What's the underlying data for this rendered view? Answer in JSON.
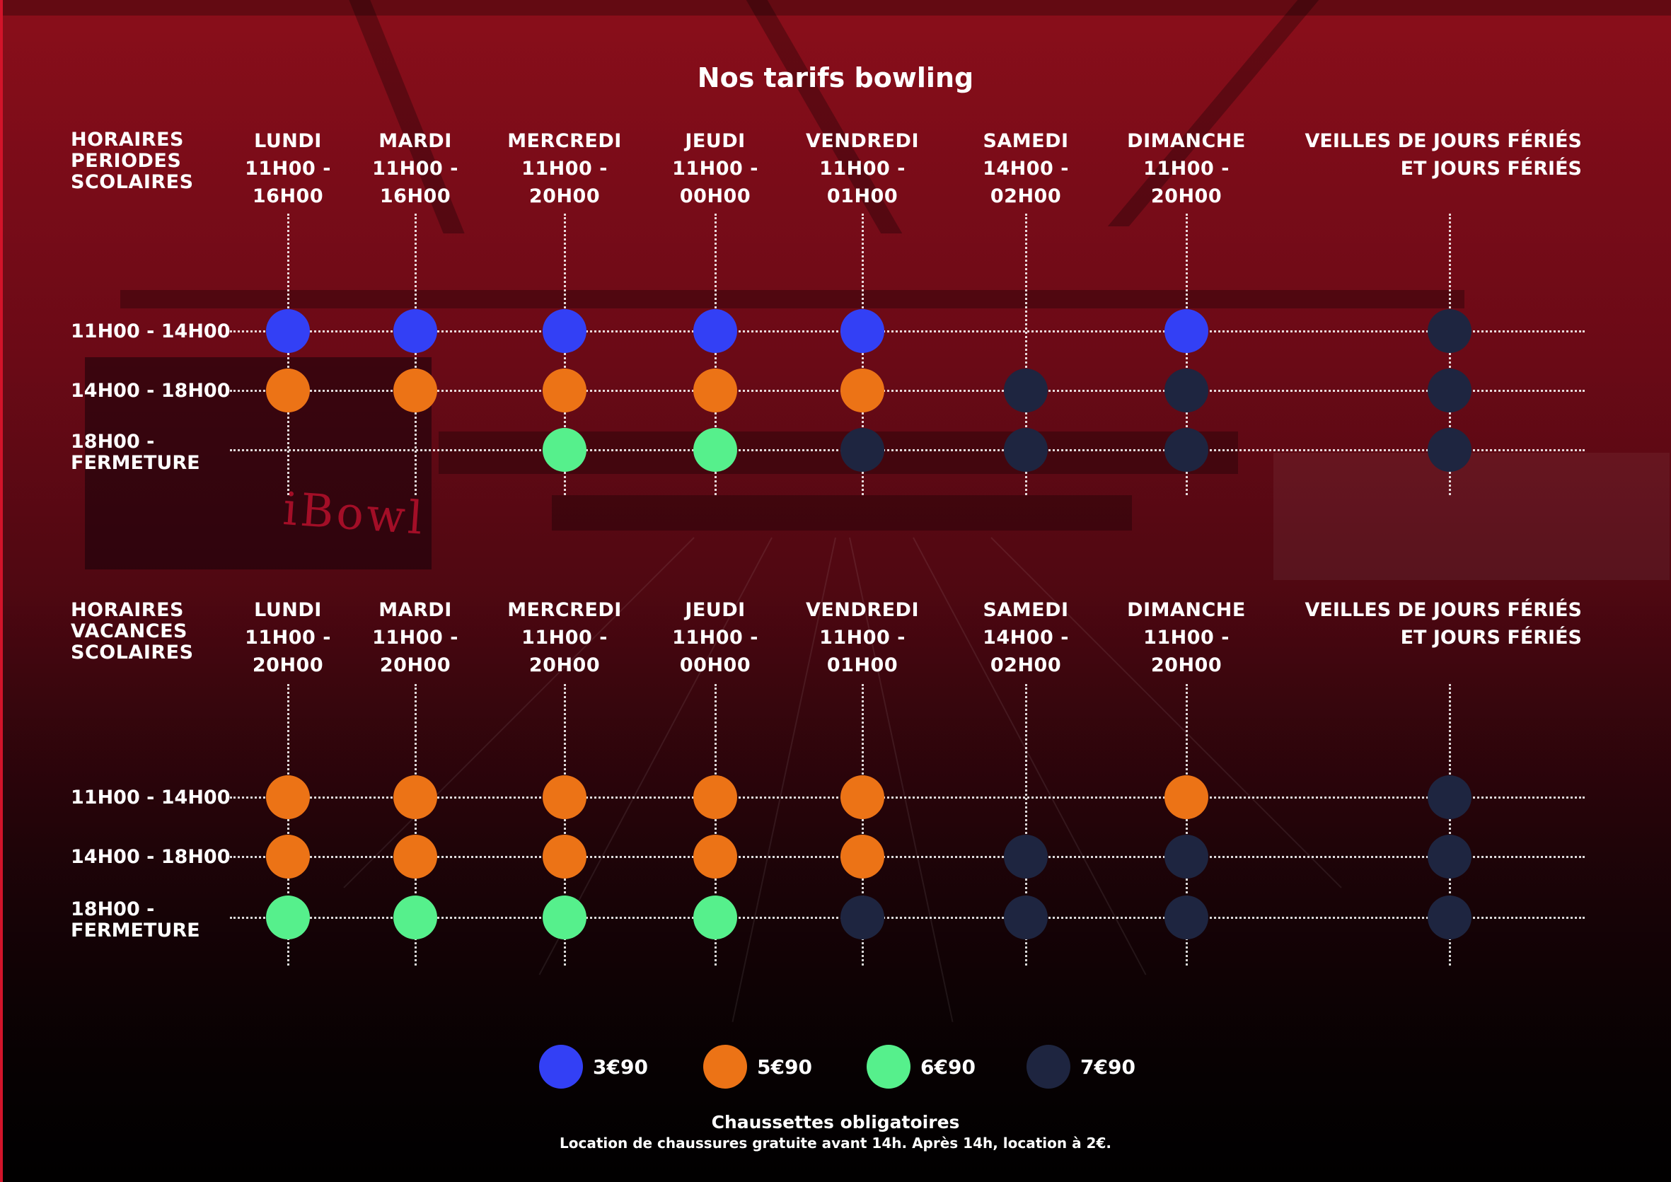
{
  "title": "Nos tarifs bowling",
  "colors": {
    "blue": "#3340f5",
    "orange": "#ec7316",
    "green": "#56f08c",
    "navy": "#1e2540"
  },
  "logo_text": "iBowl",
  "sections": [
    {
      "label": "HORAIRES\nPERIODES\nSCOLAIRES",
      "days": [
        {
          "name": "LUNDI",
          "hours": "11H00 -\n16H00"
        },
        {
          "name": "MARDI",
          "hours": "11H00 -\n16H00"
        },
        {
          "name": "MERCREDI",
          "hours": "11H00 -\n20H00"
        },
        {
          "name": "JEUDI",
          "hours": "11H00 -\n00H00"
        },
        {
          "name": "VENDREDI",
          "hours": "11H00 -\n01H00"
        },
        {
          "name": "SAMEDI",
          "hours": "14H00 -\n02H00"
        },
        {
          "name": "DIMANCHE",
          "hours": "11H00 -\n20H00"
        }
      ],
      "holiday": "VEILLES DE JOURS FÉRIÉS\nET JOURS FÉRIÉS",
      "slots": [
        "11H00 - 14H00",
        "14H00 - 18H00",
        "18H00 -\nFERMETURE"
      ],
      "grid": [
        [
          "blue",
          "blue",
          "blue",
          "blue",
          "blue",
          "",
          "blue",
          "navy"
        ],
        [
          "orange",
          "orange",
          "orange",
          "orange",
          "orange",
          "navy",
          "navy",
          "navy"
        ],
        [
          "",
          "",
          "green",
          "green",
          "navy",
          "navy",
          "navy",
          "navy"
        ]
      ]
    },
    {
      "label": "HORAIRES\nVACANCES\nSCOLAIRES",
      "days": [
        {
          "name": "LUNDI",
          "hours": "11H00 -\n20H00"
        },
        {
          "name": "MARDI",
          "hours": "11H00 -\n20H00"
        },
        {
          "name": "MERCREDI",
          "hours": "11H00 -\n20H00"
        },
        {
          "name": "JEUDI",
          "hours": "11H00 -\n00H00"
        },
        {
          "name": "VENDREDI",
          "hours": "11H00 -\n01H00"
        },
        {
          "name": "SAMEDI",
          "hours": "14H00 -\n02H00"
        },
        {
          "name": "DIMANCHE",
          "hours": "11H00 -\n20H00"
        }
      ],
      "holiday": "VEILLES DE JOURS FÉRIÉS\nET JOURS FÉRIÉS",
      "slots": [
        "11H00 - 14H00",
        "14H00 - 18H00",
        "18H00 -\nFERMETURE"
      ],
      "grid": [
        [
          "orange",
          "orange",
          "orange",
          "orange",
          "orange",
          "",
          "orange",
          "navy"
        ],
        [
          "orange",
          "orange",
          "orange",
          "orange",
          "orange",
          "navy",
          "navy",
          "navy"
        ],
        [
          "green",
          "green",
          "green",
          "green",
          "navy",
          "navy",
          "navy",
          "navy"
        ]
      ]
    }
  ],
  "legend": [
    {
      "color": "blue",
      "price": "3€90"
    },
    {
      "color": "orange",
      "price": "5€90"
    },
    {
      "color": "green",
      "price": "6€90"
    },
    {
      "color": "navy",
      "price": "7€90"
    }
  ],
  "footer": {
    "line1": "Chaussettes obligatoires",
    "line2": "Location de chaussures gratuite avant 14h. Après 14h, location à 2€."
  }
}
